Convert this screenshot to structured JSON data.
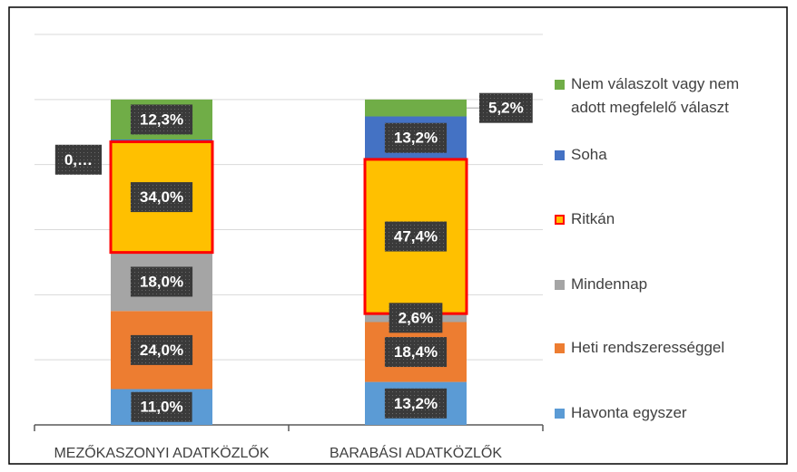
{
  "chart_data": {
    "type": "stacked_bar",
    "categories": [
      "MEZŐKASZONYI ADATKÖZLŐK",
      "BARABÁSI ADATKÖZLŐK"
    ],
    "series": [
      {
        "name": "Havonta egyszer",
        "color": "#5b9bd5",
        "values": [
          11.0,
          13.2
        ],
        "value_labels": [
          "11,0%",
          "13,2%"
        ]
      },
      {
        "name": "Heti rendszerességgel",
        "color": "#ed7d31",
        "values": [
          24.0,
          18.4
        ],
        "value_labels": [
          "24,0%",
          "18,4%"
        ]
      },
      {
        "name": "Mindennap",
        "color": "#a5a5a5",
        "values": [
          18.0,
          2.6
        ],
        "value_labels": [
          "18,0%",
          "2,6%"
        ]
      },
      {
        "name": "Ritkán",
        "color": "#ffc000",
        "border": "#ff0000",
        "values": [
          34.0,
          47.4
        ],
        "value_labels": [
          "34,0%",
          "47,4%"
        ]
      },
      {
        "name": "Soha",
        "color": "#4472c4",
        "values": [
          0.7,
          13.2
        ],
        "value_labels": [
          "0,…",
          "13,2%"
        ]
      },
      {
        "name": "Nem válaszolt vagy nem adott megfelelő választ",
        "color": "#70ad47",
        "values": [
          12.3,
          5.2
        ],
        "value_labels": [
          "12,3%",
          "5,2%"
        ]
      }
    ],
    "ylim": [
      0,
      120
    ],
    "yticks": [
      0,
      20,
      40,
      60,
      80,
      100,
      120
    ],
    "grid": true,
    "legend": "right"
  }
}
